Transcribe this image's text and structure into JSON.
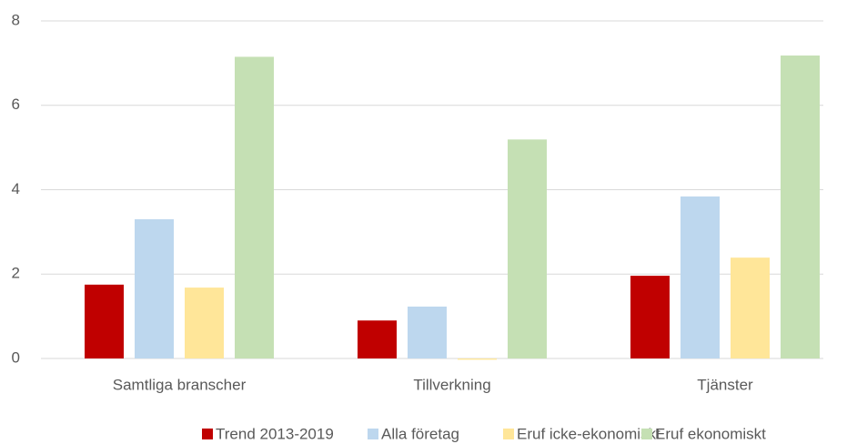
{
  "chart_data": {
    "type": "bar",
    "categories": [
      "Samtliga branscher",
      "Tillverkning",
      "Tjänster"
    ],
    "series": [
      {
        "name": "Trend 2013-2019",
        "color": "#c00000",
        "values": [
          1.75,
          0.9,
          1.96
        ]
      },
      {
        "name": "Alla företag",
        "color": "#bdd7ee",
        "values": [
          3.3,
          1.23,
          3.84
        ]
      },
      {
        "name": "Eruf icke-ekonomiskt",
        "color": "#ffe699",
        "values": [
          1.68,
          -0.03,
          2.39
        ]
      },
      {
        "name": "Eruf ekonomiskt",
        "color": "#c5e0b4",
        "values": [
          7.15,
          5.19,
          7.18
        ]
      }
    ],
    "ylim": [
      0,
      8
    ],
    "yticks": [
      0,
      2,
      4,
      6,
      8
    ],
    "grid": true,
    "legend": "bottom"
  }
}
